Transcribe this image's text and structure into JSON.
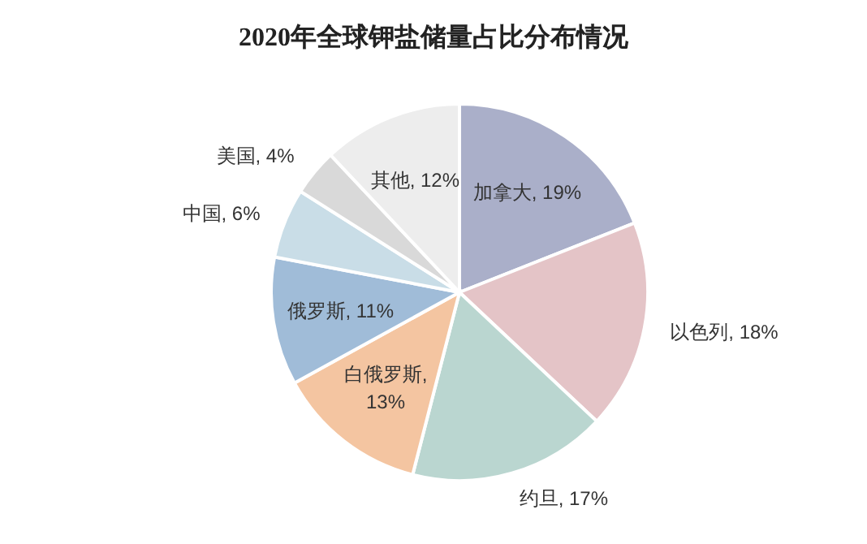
{
  "chart_data": {
    "type": "pie",
    "title": "2020年全球钾盐储量占比分布情况",
    "categories": [
      "加拿大",
      "以色列",
      "约旦",
      "白俄罗斯",
      "俄罗斯",
      "中国",
      "美国",
      "其他"
    ],
    "values": [
      19,
      18,
      17,
      13,
      11,
      6,
      4,
      12
    ],
    "colors": [
      "#aaafc9",
      "#e4c4c7",
      "#bad6d0",
      "#f4c5a1",
      "#a0bcd8",
      "#c9dde7",
      "#d9d9d9",
      "#ededed"
    ],
    "value_labels": [
      ", 19%",
      ", 18%",
      ", 17%",
      ", 13%",
      ", 11%",
      ", 6%",
      ", 4%",
      ", 12%"
    ]
  }
}
